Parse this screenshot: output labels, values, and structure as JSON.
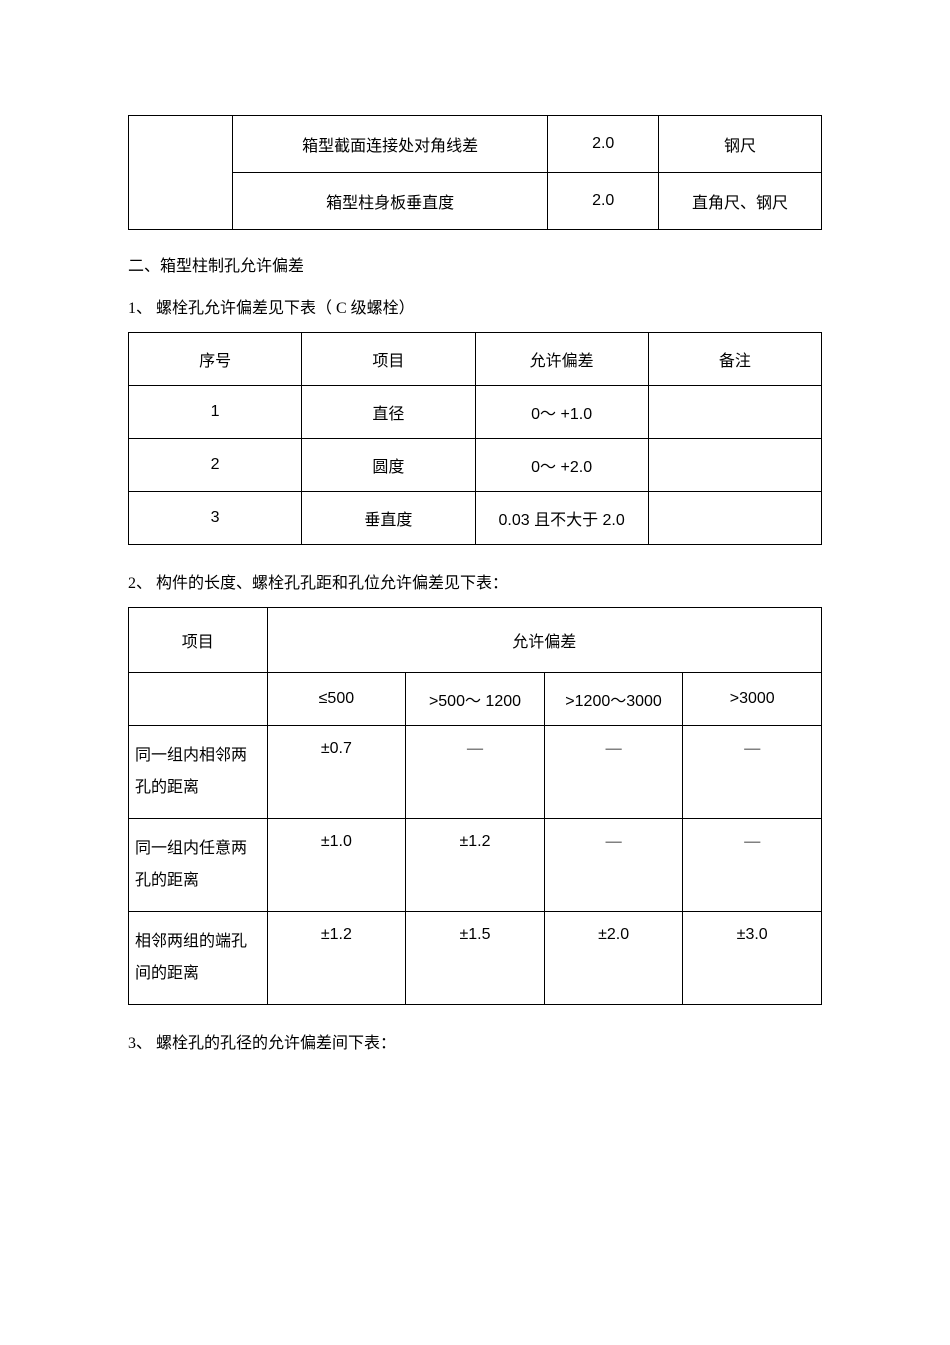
{
  "table1": {
    "col_widths_pct": [
      15,
      45.5,
      16,
      23.5
    ],
    "rows": [
      {
        "label": "箱型截面连接处对角线差",
        "val": "2.0",
        "tool": "钢尺"
      },
      {
        "label": "箱型柱身板垂直度",
        "val": "2.0",
        "tool": "直角尺、钢尺"
      }
    ]
  },
  "heading2": "二、箱型柱制孔允许偏差",
  "section2a": {
    "title": "1、 螺栓孔允许偏差见下表（ C 级螺栓）",
    "col_widths_pct": [
      25,
      25,
      25,
      25
    ],
    "headers": [
      "序号",
      "项目",
      "允许偏差",
      "备注"
    ],
    "rows": [
      {
        "no": "1",
        "item": "直径",
        "tol": "0～ +1.0",
        "note": ""
      },
      {
        "no": "2",
        "item": "圆度",
        "tol": "0～ +2.0",
        "note": ""
      },
      {
        "no": "3",
        "item": "垂直度",
        "tol": "0.03 且不大于 2.0",
        "note": ""
      }
    ]
  },
  "section2b": {
    "title": "2、 构件的长度、螺栓孔孔距和孔位允许偏差见下表：",
    "col_widths_pct": [
      20,
      20,
      20,
      20,
      20
    ],
    "item_header": "项目",
    "tol_header": "允许偏差",
    "ranges": [
      "≤500",
      ">500～ 1200",
      ">1200～3000",
      ">3000"
    ],
    "rows": [
      {
        "item": "同一组内相邻两孔的距离",
        "v": [
          "±0.7",
          "—",
          "—",
          "—"
        ]
      },
      {
        "item": "同一组内任意两孔的距离",
        "v": [
          "±1.0",
          "±1.2",
          "—",
          "—"
        ]
      },
      {
        "item": "相邻两组的端孔间的距离",
        "v": [
          "±1.2",
          "±1.5",
          "±2.0",
          "±3.0"
        ]
      }
    ]
  },
  "section2c_title": "3、 螺栓孔的孔径的允许偏差间下表："
}
